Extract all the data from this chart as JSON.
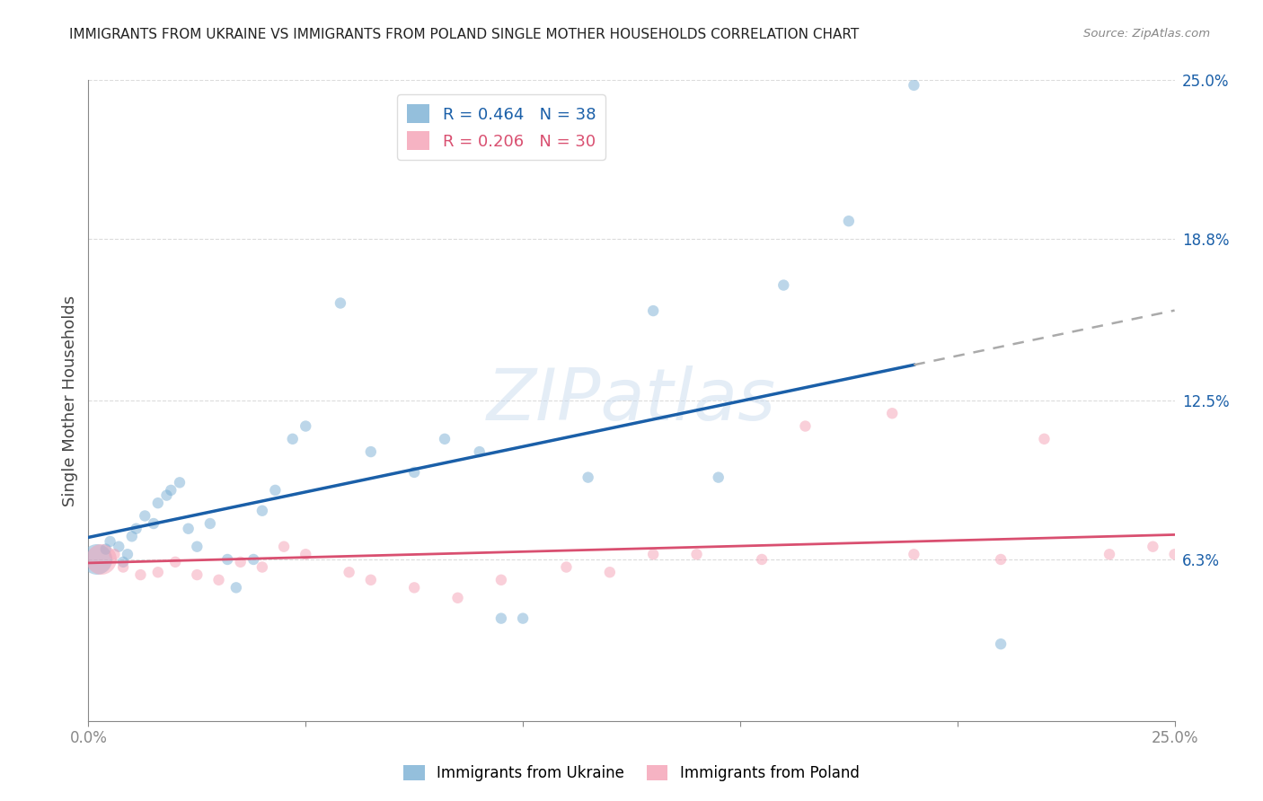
{
  "title": "IMMIGRANTS FROM UKRAINE VS IMMIGRANTS FROM POLAND SINGLE MOTHER HOUSEHOLDS CORRELATION CHART",
  "source": "Source: ZipAtlas.com",
  "ylabel": "Single Mother Households",
  "xlim": [
    0.0,
    0.25
  ],
  "ylim": [
    0.0,
    0.25
  ],
  "ytick_labels": [
    "6.3%",
    "12.5%",
    "18.8%",
    "25.0%"
  ],
  "ytick_values": [
    0.063,
    0.125,
    0.188,
    0.25
  ],
  "ukraine_color": "#7aafd4",
  "poland_color": "#f4a0b5",
  "ukraine_line_color": "#1a5fa8",
  "poland_line_color": "#d94f70",
  "ukraine_R": 0.464,
  "ukraine_N": 38,
  "poland_R": 0.206,
  "poland_N": 30,
  "ukraine_scatter_x": [
    0.002,
    0.004,
    0.005,
    0.007,
    0.008,
    0.009,
    0.01,
    0.011,
    0.013,
    0.015,
    0.016,
    0.018,
    0.019,
    0.021,
    0.023,
    0.025,
    0.028,
    0.032,
    0.034,
    0.038,
    0.04,
    0.043,
    0.047,
    0.05,
    0.058,
    0.065,
    0.075,
    0.082,
    0.09,
    0.095,
    0.1,
    0.115,
    0.13,
    0.145,
    0.16,
    0.175,
    0.19,
    0.21
  ],
  "ukraine_scatter_y": [
    0.063,
    0.067,
    0.07,
    0.068,
    0.062,
    0.065,
    0.072,
    0.075,
    0.08,
    0.077,
    0.085,
    0.088,
    0.09,
    0.093,
    0.075,
    0.068,
    0.077,
    0.063,
    0.052,
    0.063,
    0.082,
    0.09,
    0.11,
    0.115,
    0.163,
    0.105,
    0.097,
    0.11,
    0.105,
    0.04,
    0.04,
    0.095,
    0.16,
    0.095,
    0.17,
    0.195,
    0.248,
    0.03
  ],
  "ukraine_scatter_size": [
    600,
    80,
    80,
    80,
    80,
    80,
    80,
    80,
    80,
    80,
    80,
    80,
    80,
    80,
    80,
    80,
    80,
    80,
    80,
    80,
    80,
    80,
    80,
    80,
    80,
    80,
    80,
    80,
    80,
    80,
    80,
    80,
    80,
    80,
    80,
    80,
    80,
    80
  ],
  "poland_scatter_x": [
    0.003,
    0.006,
    0.008,
    0.012,
    0.016,
    0.02,
    0.025,
    0.03,
    0.035,
    0.04,
    0.045,
    0.05,
    0.06,
    0.065,
    0.075,
    0.085,
    0.095,
    0.11,
    0.12,
    0.13,
    0.14,
    0.155,
    0.165,
    0.185,
    0.19,
    0.21,
    0.22,
    0.235,
    0.245,
    0.25
  ],
  "poland_scatter_y": [
    0.063,
    0.065,
    0.06,
    0.057,
    0.058,
    0.062,
    0.057,
    0.055,
    0.062,
    0.06,
    0.068,
    0.065,
    0.058,
    0.055,
    0.052,
    0.048,
    0.055,
    0.06,
    0.058,
    0.065,
    0.065,
    0.063,
    0.115,
    0.12,
    0.065,
    0.063,
    0.11,
    0.065,
    0.068,
    0.065
  ],
  "poland_scatter_size": [
    600,
    80,
    80,
    80,
    80,
    80,
    80,
    80,
    80,
    80,
    80,
    80,
    80,
    80,
    80,
    80,
    80,
    80,
    80,
    80,
    80,
    80,
    80,
    80,
    80,
    80,
    80,
    80,
    80,
    80
  ],
  "background_color": "#ffffff",
  "grid_color": "#cccccc",
  "watermark_text": "ZIPatlas",
  "watermark_color": "#c5d8ed",
  "dashed_line_color": "#aaaaaa",
  "ukraine_line_solid_end": 0.19,
  "ukraine_line_start": 0.0,
  "poland_line_start": 0.0,
  "poland_line_end": 0.25
}
